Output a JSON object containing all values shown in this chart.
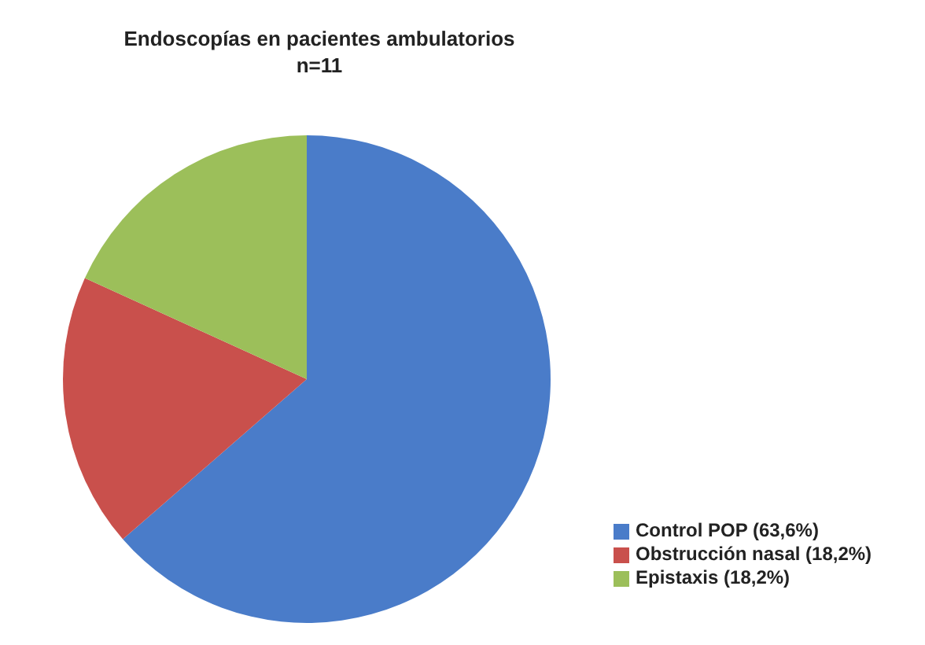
{
  "chart_data": {
    "type": "pie",
    "title": "Endoscopías en pacientes ambulatorios",
    "subtitle": "n=11",
    "categories": [
      "Control POP (63,6%)",
      "Obstrucción nasal (18,2%)",
      "Epistaxis (18,2%)"
    ],
    "values": [
      63.6,
      18.2,
      18.2
    ],
    "colors": [
      "#4a7cc9",
      "#c9504c",
      "#9cbf5a"
    ],
    "legend": "bottom right"
  }
}
